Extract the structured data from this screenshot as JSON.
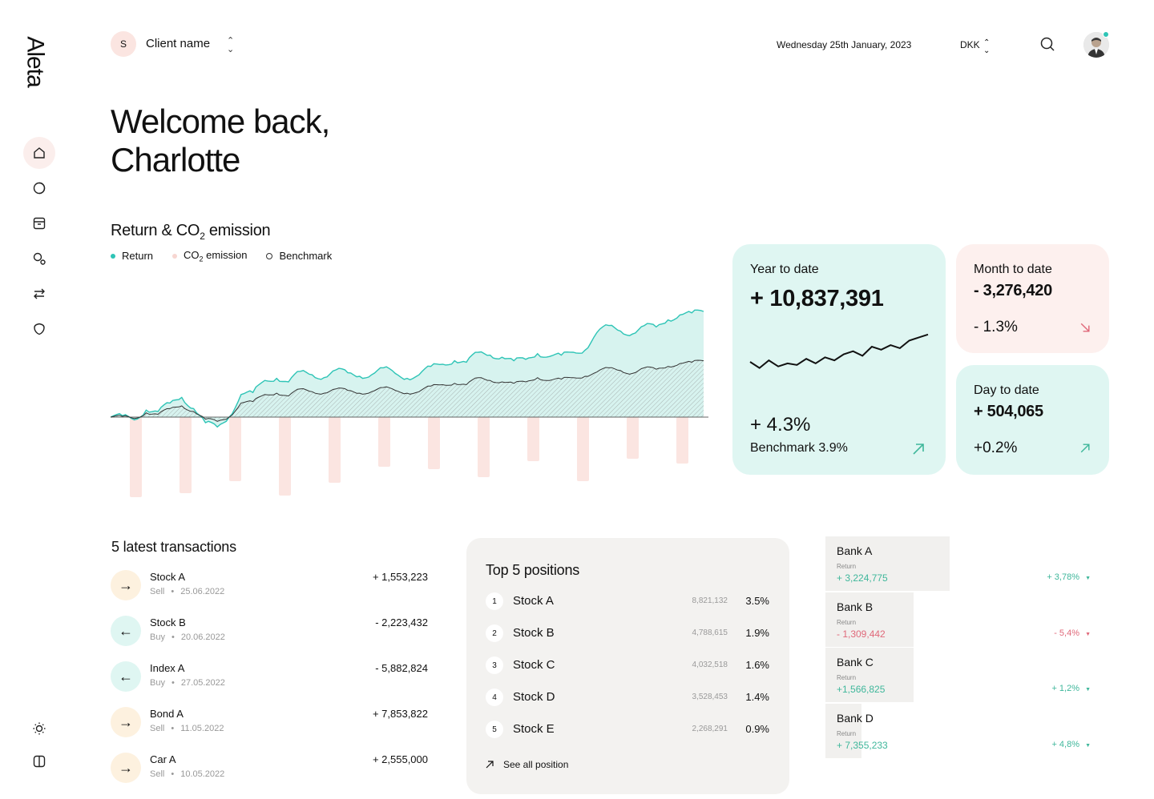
{
  "brand": {
    "logo": "Aleta"
  },
  "sidebar": {
    "items": [
      {
        "icon": "home-icon",
        "active": true
      },
      {
        "icon": "portfolio-icon"
      },
      {
        "icon": "archive-icon"
      },
      {
        "icon": "assets-icon"
      },
      {
        "icon": "transfer-icon"
      },
      {
        "icon": "shield-icon"
      }
    ],
    "bottom": [
      {
        "icon": "sun-icon"
      },
      {
        "icon": "layout-toggle-icon"
      }
    ]
  },
  "header": {
    "client_initial": "S",
    "client_name": "Client name",
    "date": "Wednesday 25th January, 2023",
    "currency": "DKK"
  },
  "welcome": {
    "line1": "Welcome back,",
    "line2": "Charlotte"
  },
  "chart": {
    "title": "Return & CO",
    "title_sub": "2",
    "title_tail": " emission",
    "legend": [
      {
        "label": "Return",
        "color": "#2ec4b6"
      },
      {
        "label": "CO",
        "sub": "2",
        "tail": " emission",
        "color": "#f7d6d1"
      },
      {
        "label": "Benchmark",
        "color": "#333333"
      }
    ]
  },
  "chart_data": {
    "type": "area",
    "series": [
      {
        "name": "Return",
        "color": "#2ec4b6",
        "values": [
          0,
          2,
          -4,
          10,
          8,
          20,
          28,
          12,
          -8,
          -14,
          0,
          32,
          35,
          52,
          55,
          50,
          65,
          60,
          56,
          67,
          63,
          58,
          60,
          70,
          62,
          55,
          60,
          72,
          75,
          80,
          78,
          92,
          88,
          85,
          80,
          82,
          90,
          86,
          88,
          92,
          95,
          120,
          130,
          122,
          118,
          130,
          128,
          138,
          145,
          148,
          150
        ]
      },
      {
        "name": "Benchmark",
        "color": "#333333",
        "values": [
          0,
          1,
          -2,
          6,
          4,
          12,
          16,
          8,
          -3,
          -6,
          0,
          20,
          22,
          32,
          34,
          30,
          40,
          36,
          34,
          40,
          38,
          34,
          36,
          42,
          38,
          34,
          36,
          44,
          46,
          48,
          46,
          56,
          52,
          50,
          48,
          50,
          56,
          52,
          54,
          56,
          58,
          64,
          70,
          66,
          62,
          70,
          68,
          72,
          76,
          78,
          80
        ]
      },
      {
        "name": "CO2 emission",
        "color": "#fbe5e1",
        "values": [
          100,
          95,
          80,
          98,
          82,
          62,
          65,
          75,
          55,
          80,
          52,
          58
        ]
      }
    ]
  },
  "cards": {
    "ytd": {
      "label": "Year to date",
      "value": "+ 10,837,391",
      "pct": "+ 4.3%",
      "benchmark": "Benchmark 3.9%",
      "spark": [
        20,
        12,
        22,
        14,
        18,
        16,
        24,
        18,
        26,
        22,
        30,
        34,
        28,
        40,
        36,
        42,
        38,
        48,
        52,
        56
      ]
    },
    "mtd": {
      "label": "Month to date",
      "value": "- 3,276,420",
      "pct": "- 1.3%"
    },
    "dtd": {
      "label": "Day to date",
      "value": "+ 504,065",
      "pct": "+0.2%"
    }
  },
  "transactions": {
    "title": "5 latest transactions",
    "items": [
      {
        "name": "Stock A",
        "type": "Sell",
        "date": "25.06.2022",
        "amount": "+ 1,553,223",
        "direction": "sell"
      },
      {
        "name": "Stock B",
        "type": "Buy",
        "date": "20.06.2022",
        "amount": "- 2,223,432",
        "direction": "buy"
      },
      {
        "name": "Index A",
        "type": "Buy",
        "date": "27.05.2022",
        "amount": "- 5,882,824",
        "direction": "buy"
      },
      {
        "name": "Bond A",
        "type": "Sell",
        "date": "11.05.2022",
        "amount": "+ 7,853,822",
        "direction": "sell"
      },
      {
        "name": "Car A",
        "type": "Sell",
        "date": "10.05.2022",
        "amount": "+ 2,555,000",
        "direction": "sell"
      }
    ]
  },
  "positions": {
    "title": "Top 5 positions",
    "items": [
      {
        "rank": "1",
        "name": "Stock A",
        "value": "8,821,132",
        "share": "3.5%"
      },
      {
        "rank": "2",
        "name": "Stock B",
        "value": "4,788,615",
        "share": "1.9%"
      },
      {
        "rank": "3",
        "name": "Stock C",
        "value": "4,032,518",
        "share": "1.6%"
      },
      {
        "rank": "4",
        "name": "Stock D",
        "value": "3,528,453",
        "share": "1.4%"
      },
      {
        "rank": "5",
        "name": "Stock E",
        "value": "2,268,291",
        "share": "0.9%"
      }
    ],
    "see_all": "See all position"
  },
  "banks": {
    "return_label": "Return",
    "items": [
      {
        "name": "Bank A",
        "value": "+ 3,224,775",
        "change": "+ 3,78%",
        "positive": true,
        "bar": 0.45
      },
      {
        "name": "Bank B",
        "value": "- 1,309,442",
        "change": "- 5,4%",
        "positive": false,
        "bar": 0.32
      },
      {
        "name": "Bank C",
        "value": "+1,566,825",
        "change": "+ 1,2%",
        "positive": true,
        "bar": 0.32
      },
      {
        "name": "Bank D",
        "value": "+ 7,355,233",
        "change": "+ 4,8%",
        "positive": true,
        "bar": 0.13
      }
    ]
  }
}
